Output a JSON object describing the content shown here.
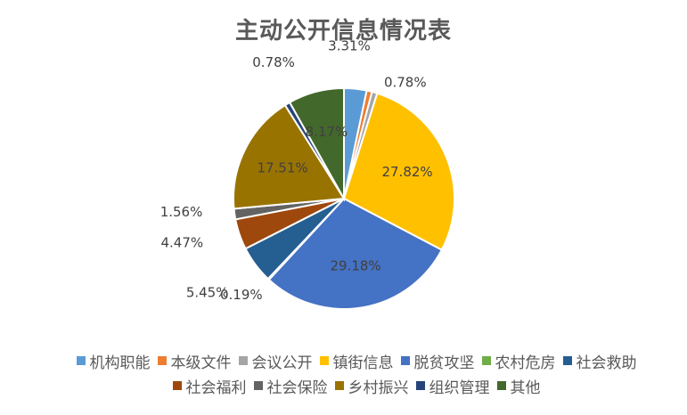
{
  "chart_data": {
    "type": "pie",
    "title": "主动公开信息情况表",
    "slices": [
      {
        "name": "机构职能",
        "value": 3.31,
        "label": "3.31%",
        "color": "#5B9BD5"
      },
      {
        "name": "本级文件",
        "value": 0.78,
        "label": "",
        "color": "#ED7D31"
      },
      {
        "name": "会议公开",
        "value": 0.78,
        "label": "0.78%",
        "color": "#A5A5A5"
      },
      {
        "name": "镇街信息",
        "value": 27.82,
        "label": "27.82%",
        "color": "#FFC000"
      },
      {
        "name": "脱贫攻坚",
        "value": 29.18,
        "label": "29.18%",
        "color": "#4472C4"
      },
      {
        "name": "农村危房",
        "value": 0.19,
        "label": "0.19%",
        "color": "#70AD47"
      },
      {
        "name": "社会救助",
        "value": 5.45,
        "label": "5.45%",
        "color": "#255E91"
      },
      {
        "name": "社会福利",
        "value": 4.47,
        "label": "4.47%",
        "color": "#9E480E"
      },
      {
        "name": "社会保险",
        "value": 1.56,
        "label": "1.56%",
        "color": "#636363"
      },
      {
        "name": "乡村振兴",
        "value": 17.51,
        "label": "17.51%",
        "color": "#997300"
      },
      {
        "name": "组织管理",
        "value": 0.78,
        "label": "0.78%",
        "color": "#264478"
      },
      {
        "name": "其他",
        "value": 8.17,
        "label": "8.17%",
        "color": "#43682B"
      }
    ],
    "legend_position": "bottom",
    "label_color": "#404040"
  }
}
